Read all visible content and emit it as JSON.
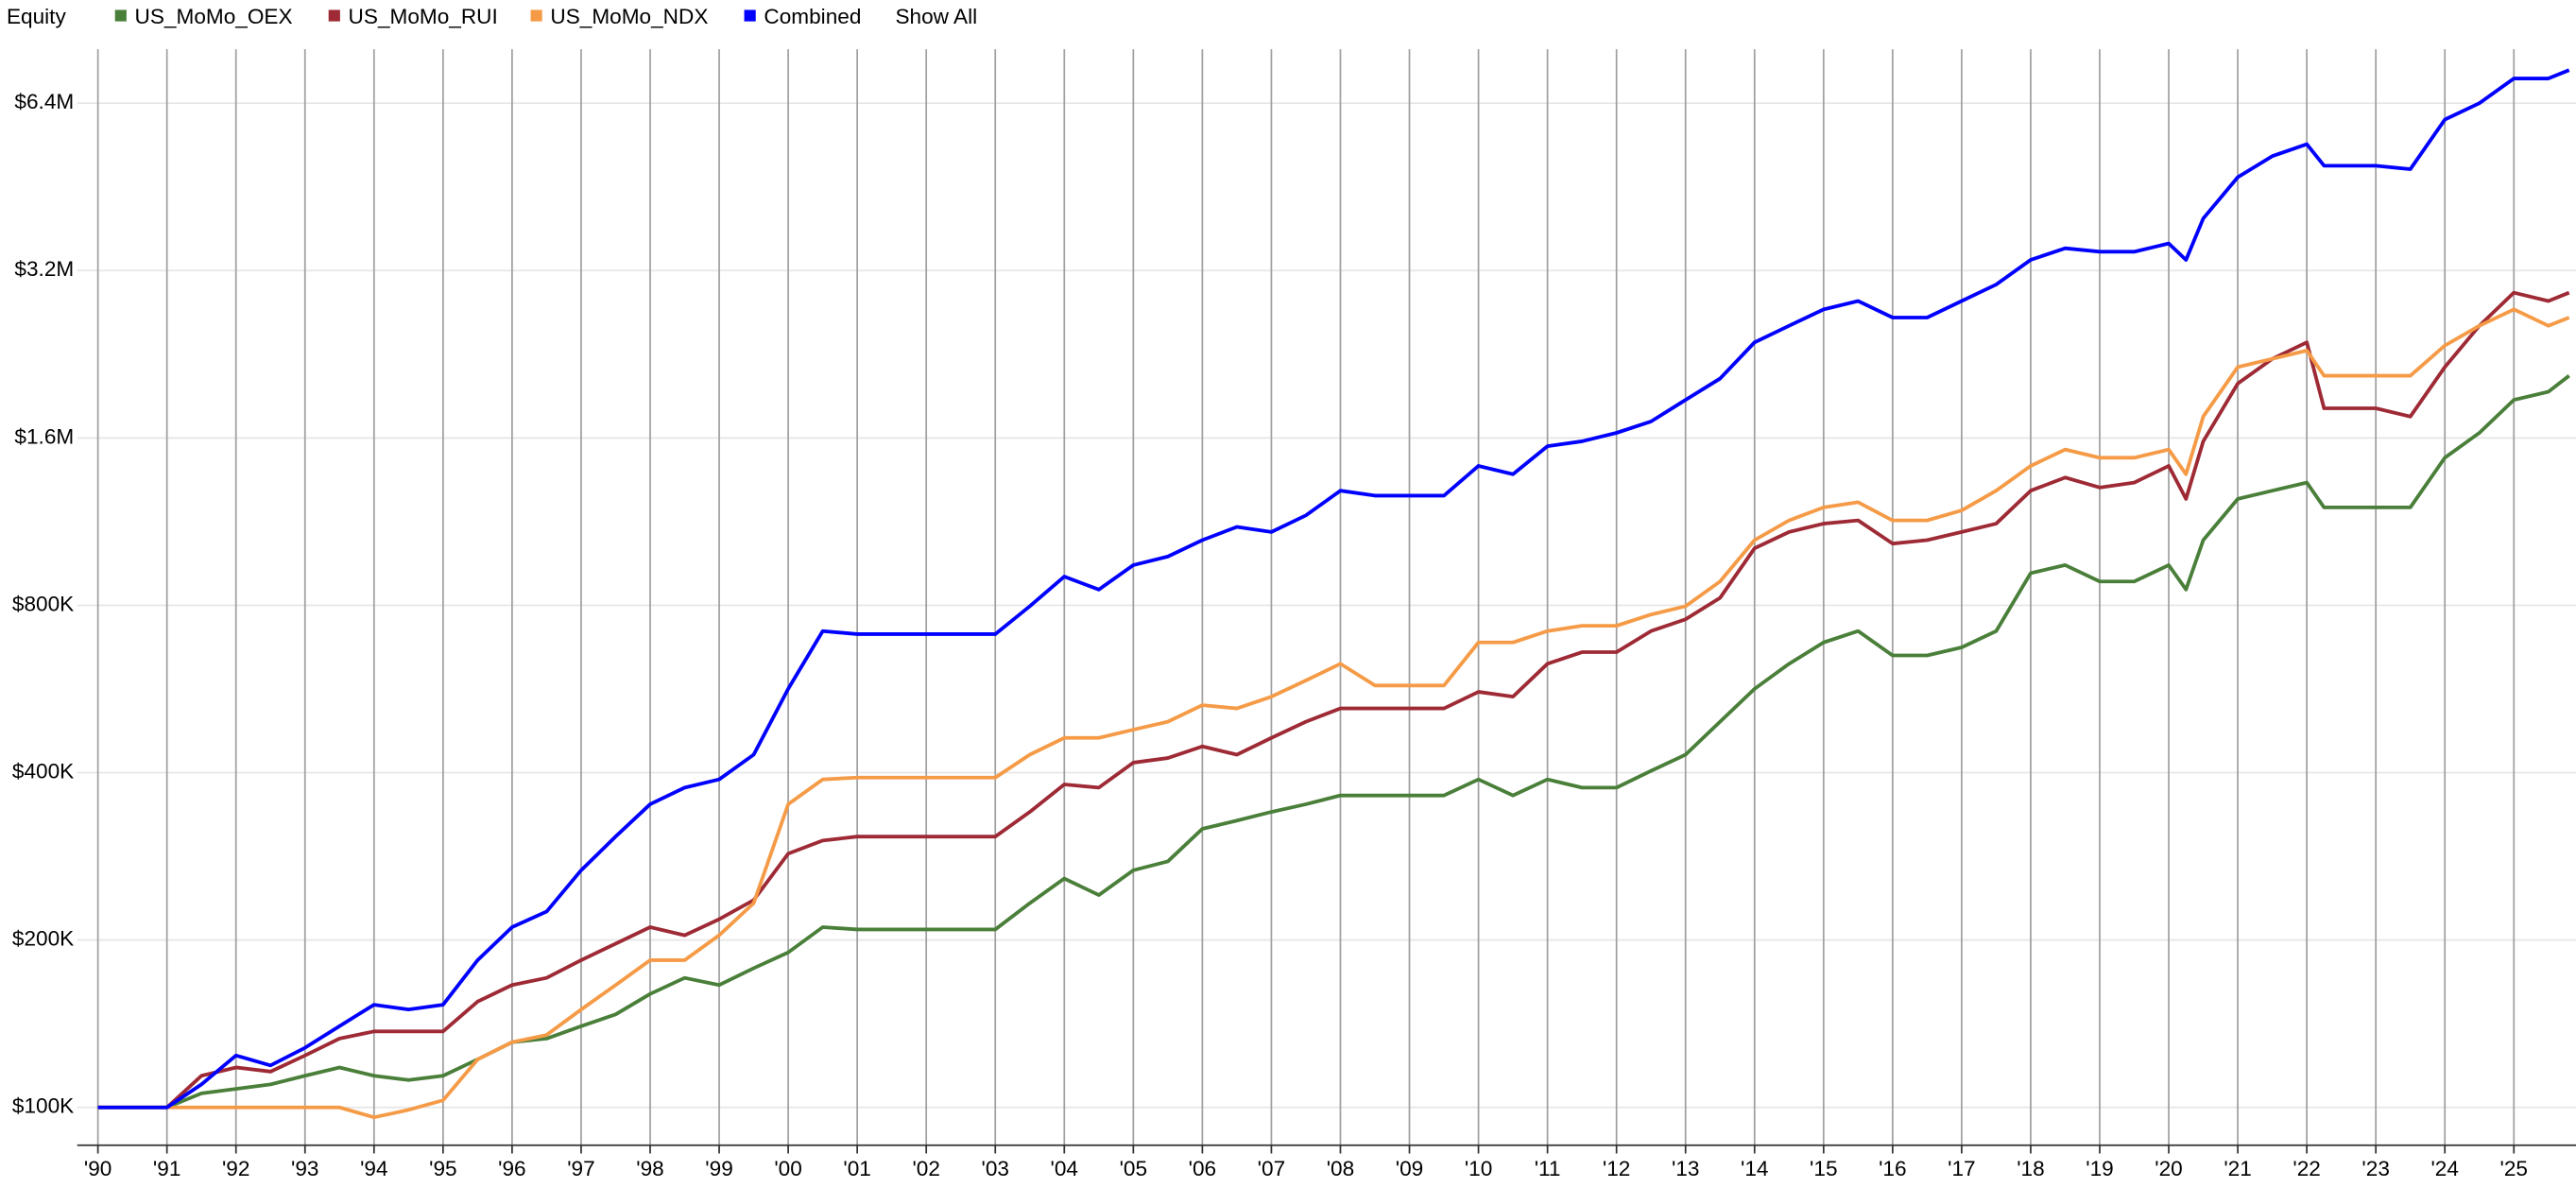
{
  "chart_data": {
    "type": "line",
    "title": "Equity",
    "legend_action": "Show All",
    "log_scale": true,
    "grid": true,
    "x": [
      1990,
      1991,
      1991.5,
      1992,
      1992.5,
      1993,
      1993.5,
      1994,
      1994.5,
      1995,
      1995.5,
      1996,
      1996.5,
      1997,
      1997.5,
      1998,
      1998.5,
      1999,
      1999.5,
      2000,
      2000.5,
      2001,
      2002,
      2003,
      2003.5,
      2004,
      2004.5,
      2005,
      2005.5,
      2006,
      2006.5,
      2007,
      2007.5,
      2008,
      2008.5,
      2009,
      2009.5,
      2010,
      2010.5,
      2011,
      2011.5,
      2012,
      2012.5,
      2013,
      2013.5,
      2014,
      2014.5,
      2015,
      2015.5,
      2016,
      2016.5,
      2017,
      2017.5,
      2018,
      2018.5,
      2019,
      2019.5,
      2020,
      2020.25,
      2020.5,
      2021,
      2021.5,
      2022,
      2022.25,
      2023,
      2023.5,
      2024,
      2024.5,
      2025,
      2025.5,
      2025.8
    ],
    "xlim": [
      1989.7,
      2025.9
    ],
    "xticks": [
      {
        "value": 1990,
        "label": "'90"
      },
      {
        "value": 1991,
        "label": "'91"
      },
      {
        "value": 1992,
        "label": "'92"
      },
      {
        "value": 1993,
        "label": "'93"
      },
      {
        "value": 1994,
        "label": "'94"
      },
      {
        "value": 1995,
        "label": "'95"
      },
      {
        "value": 1996,
        "label": "'96"
      },
      {
        "value": 1997,
        "label": "'97"
      },
      {
        "value": 1998,
        "label": "'98"
      },
      {
        "value": 1999,
        "label": "'99"
      },
      {
        "value": 2000,
        "label": "'00"
      },
      {
        "value": 2001,
        "label": "'01"
      },
      {
        "value": 2002,
        "label": "'02"
      },
      {
        "value": 2003,
        "label": "'03"
      },
      {
        "value": 2004,
        "label": "'04"
      },
      {
        "value": 2005,
        "label": "'05"
      },
      {
        "value": 2006,
        "label": "'06"
      },
      {
        "value": 2007,
        "label": "'07"
      },
      {
        "value": 2008,
        "label": "'08"
      },
      {
        "value": 2009,
        "label": "'09"
      },
      {
        "value": 2010,
        "label": "'10"
      },
      {
        "value": 2011,
        "label": "'11"
      },
      {
        "value": 2012,
        "label": "'12"
      },
      {
        "value": 2013,
        "label": "'13"
      },
      {
        "value": 2014,
        "label": "'14"
      },
      {
        "value": 2015,
        "label": "'15"
      },
      {
        "value": 2016,
        "label": "'16"
      },
      {
        "value": 2017,
        "label": "'17"
      },
      {
        "value": 2018,
        "label": "'18"
      },
      {
        "value": 2019,
        "label": "'19"
      },
      {
        "value": 2020,
        "label": "'20"
      },
      {
        "value": 2021,
        "label": "'21"
      },
      {
        "value": 2022,
        "label": "'22"
      },
      {
        "value": 2023,
        "label": "'23"
      },
      {
        "value": 2024,
        "label": "'24"
      },
      {
        "value": 2025,
        "label": "'25"
      }
    ],
    "ylim": [
      85500,
      8000000
    ],
    "yticks": [
      {
        "value": 100000,
        "label": "$100K"
      },
      {
        "value": 200000,
        "label": "$200K"
      },
      {
        "value": 400000,
        "label": "$400K"
      },
      {
        "value": 800000,
        "label": "$800K"
      },
      {
        "value": 1600000,
        "label": "$1.6M"
      },
      {
        "value": 3200000,
        "label": "$3.2M"
      },
      {
        "value": 6400000,
        "label": "$6.4M"
      }
    ],
    "series": [
      {
        "name": "US_MoMo_OEX",
        "color": "#4a7f3a",
        "values": [
          100000,
          100000,
          106000,
          108000,
          110000,
          114000,
          118000,
          114000,
          112000,
          114000,
          122000,
          131000,
          133000,
          140000,
          147000,
          160000,
          171000,
          166000,
          178000,
          190000,
          211000,
          209000,
          209000,
          209000,
          233000,
          258000,
          241000,
          267000,
          277000,
          317000,
          328000,
          340000,
          351000,
          364000,
          364000,
          364000,
          364000,
          389000,
          364000,
          389000,
          376000,
          376000,
          403000,
          431000,
          494000,
          566000,
          628000,
          686000,
          719000,
          650000,
          650000,
          672000,
          719000,
          914000,
          945000,
          883000,
          883000,
          945000,
          854000,
          1048000,
          1243000,
          1286000,
          1330000,
          1200000,
          1200000,
          1200000,
          1474000,
          1634000,
          1873000,
          1937000,
          2070000
        ]
      },
      {
        "name": "US_MoMo_RUI",
        "color": "#9e2a35",
        "values": [
          100000,
          100000,
          114000,
          118000,
          116000,
          124000,
          133000,
          137000,
          137000,
          137000,
          155000,
          166000,
          171000,
          184000,
          197000,
          211000,
          204000,
          218000,
          236000,
          286000,
          302000,
          307000,
          307000,
          307000,
          340000,
          381000,
          376000,
          417000,
          425000,
          446000,
          431000,
          462000,
          494000,
          522000,
          522000,
          522000,
          522000,
          559000,
          548000,
          628000,
          659000,
          659000,
          719000,
          755000,
          825000,
          1013000,
          1084000,
          1122000,
          1137000,
          1033000,
          1048000,
          1084000,
          1122000,
          1286000,
          1358000,
          1303000,
          1330000,
          1425000,
          1243000,
          1578000,
          2004000,
          2220000,
          2377000,
          1809000,
          1809000,
          1748000,
          2146000,
          2546000,
          2920000,
          2821000,
          2920000
        ]
      },
      {
        "name": "US_MoMo_NDX",
        "color": "#f59b47",
        "values": [
          100000,
          100000,
          100000,
          100000,
          100000,
          100000,
          100000,
          96000,
          99000,
          103000,
          122000,
          131000,
          135000,
          150000,
          166000,
          184000,
          184000,
          204000,
          233000,
          351000,
          389000,
          392000,
          392000,
          392000,
          431000,
          462000,
          462000,
          478000,
          494000,
          529000,
          522000,
          548000,
          586000,
          628000,
          574000,
          574000,
          574000,
          686000,
          686000,
          719000,
          735000,
          735000,
          770000,
          797000,
          883000,
          1048000,
          1137000,
          1200000,
          1226000,
          1137000,
          1137000,
          1185000,
          1286000,
          1425000,
          1525000,
          1474000,
          1474000,
          1525000,
          1377000,
          1748000,
          2146000,
          2220000,
          2298000,
          2070000,
          2070000,
          2070000,
          2346000,
          2546000,
          2725000,
          2546000,
          2634000
        ]
      },
      {
        "name": "Combined",
        "color": "#0000ff",
        "values": [
          100000,
          100000,
          110000,
          124000,
          119000,
          128000,
          140000,
          153000,
          150000,
          153000,
          184000,
          211000,
          225000,
          267000,
          307000,
          351000,
          376000,
          389000,
          431000,
          566000,
          719000,
          710000,
          710000,
          710000,
          797000,
          901000,
          854000,
          945000,
          979000,
          1048000,
          1107000,
          1084000,
          1161000,
          1286000,
          1260000,
          1260000,
          1260000,
          1425000,
          1377000,
          1546000,
          1578000,
          1634000,
          1713000,
          1873000,
          2046000,
          2377000,
          2546000,
          2725000,
          2821000,
          2634000,
          2634000,
          2821000,
          3020000,
          3345000,
          3510000,
          3460000,
          3460000,
          3580000,
          3345000,
          3970000,
          4710000,
          5140000,
          5400000,
          4940000,
          4940000,
          4870000,
          5980000,
          6400000,
          7090000,
          7090000,
          7340000
        ]
      }
    ]
  }
}
